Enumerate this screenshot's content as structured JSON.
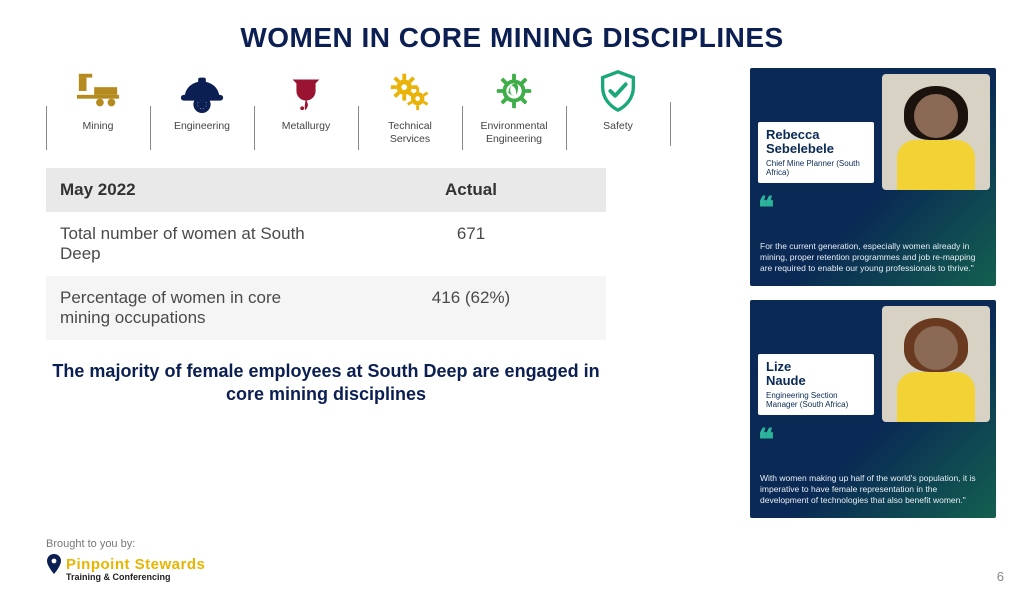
{
  "colors": {
    "title": "#0c1f52",
    "caption": "#0c1f52",
    "card_bg_gradient_from": "#0a2a55",
    "card_bg_gradient_to": "#13604f",
    "quote_mark": "#2bb39b",
    "brand_yellow": "#e8b400",
    "table_head_bg": "#e9e9e9",
    "table_alt_bg": "#f5f5f5"
  },
  "title": "WOMEN IN CORE MINING DISCIPLINES",
  "disciplines": [
    {
      "label": "Mining",
      "icon": "mining",
      "color": "#b58a1e"
    },
    {
      "label": "Engineering",
      "icon": "hardhat",
      "color": "#0c1f52"
    },
    {
      "label": "Metallurgy",
      "icon": "crucible",
      "color": "#9a1331"
    },
    {
      "label": "Technical\nServices",
      "icon": "gears",
      "color": "#eab308"
    },
    {
      "label": "Environmental\nEngineering",
      "icon": "leafgear",
      "color": "#3fae49"
    },
    {
      "label": "Safety",
      "icon": "shield",
      "color": "#1aa87a"
    }
  ],
  "table": {
    "head": {
      "c1": "May 2022",
      "c2": "Actual"
    },
    "rows": [
      {
        "c1": "Total number of women at South Deep",
        "c2": "671"
      },
      {
        "c1": "Percentage of women in core mining occupations",
        "c2": "416 (62%)"
      }
    ]
  },
  "caption": "The majority of female employees at South Deep are engaged in core mining disciplines",
  "footer": {
    "label": "Brought to you by:",
    "brand_primary": "Pinpoint Stewards",
    "brand_secondary": "Training & Conferencing"
  },
  "profiles": [
    {
      "name": "Rebecca Sebelebele",
      "role": "Chief Mine Planner (South Africa)",
      "quote": "For the current generation, especially women already in mining, proper retention programmes and job re-mapping are required to enable our young professionals to thrive.\"",
      "hair_color": "#1c120d",
      "shirt_color": "#f2d235"
    },
    {
      "name": "Lize Naude",
      "role": "Engineering Section Manager (South Africa)",
      "quote": "With women making up half of the world's population, it is imperative to have female representation in the development of technologies that also benefit women.\"",
      "hair_color": "#6a3a20",
      "shirt_color": "#f2d235"
    }
  ],
  "page_number": "6"
}
